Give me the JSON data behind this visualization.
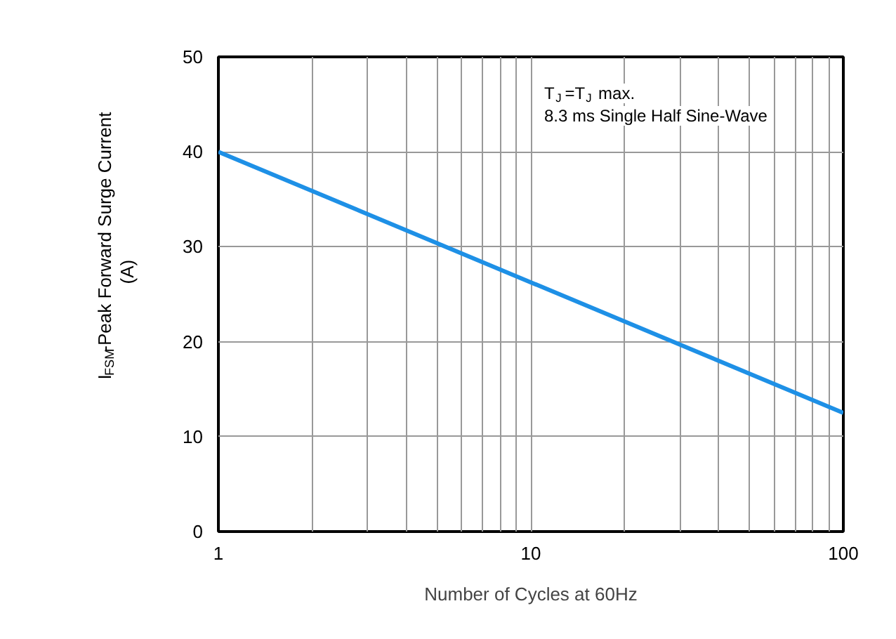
{
  "chart_data": {
    "type": "line",
    "xlabel": "Number of Cycles at 60Hz",
    "ylabel": "I$_{FSM}$-Peak Forward Surge Current (A)",
    "log": "x",
    "xlim": [
      1,
      100
    ],
    "xticks": [
      1,
      10,
      100
    ],
    "ylim": [
      0,
      50
    ],
    "yticks": [
      0,
      10,
      20,
      30,
      40,
      50
    ],
    "grid": true,
    "annotations": [
      "T$_{J}$=T$_{J}$ max.",
      "8.3 ms Single Half Sine-Wave"
    ],
    "x": [
      1,
      100
    ],
    "series": [
      {
        "color": "#1e90e6",
        "values": [
          40,
          12.5
        ]
      }
    ]
  }
}
